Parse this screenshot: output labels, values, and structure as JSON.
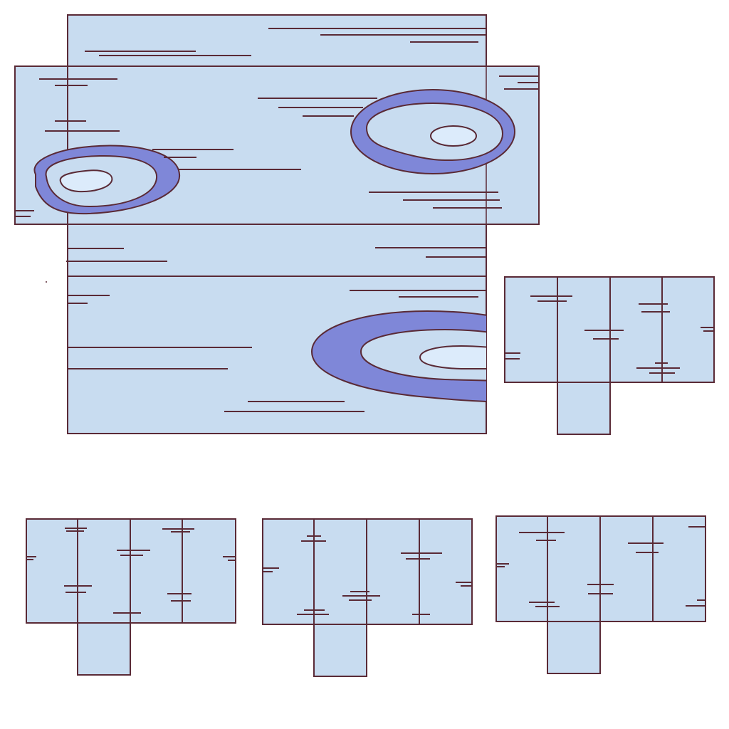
{
  "colors": {
    "background": "#ffffff",
    "panel_fill": "#c8dcf0",
    "outline": "#5a2a36",
    "contour_band": "#7f87d8",
    "contour_core": "#dcebfb"
  },
  "main_drawing": {
    "panels": [
      "upper-strip",
      "middle-wide-band",
      "lower-section"
    ],
    "contour_blobs": [
      "left-blob",
      "right-blob",
      "bottom-right-blob"
    ]
  },
  "small_diagrams": [
    "diagram-right",
    "diagram-bottom-left",
    "diagram-bottom-middle",
    "diagram-bottom-right"
  ]
}
